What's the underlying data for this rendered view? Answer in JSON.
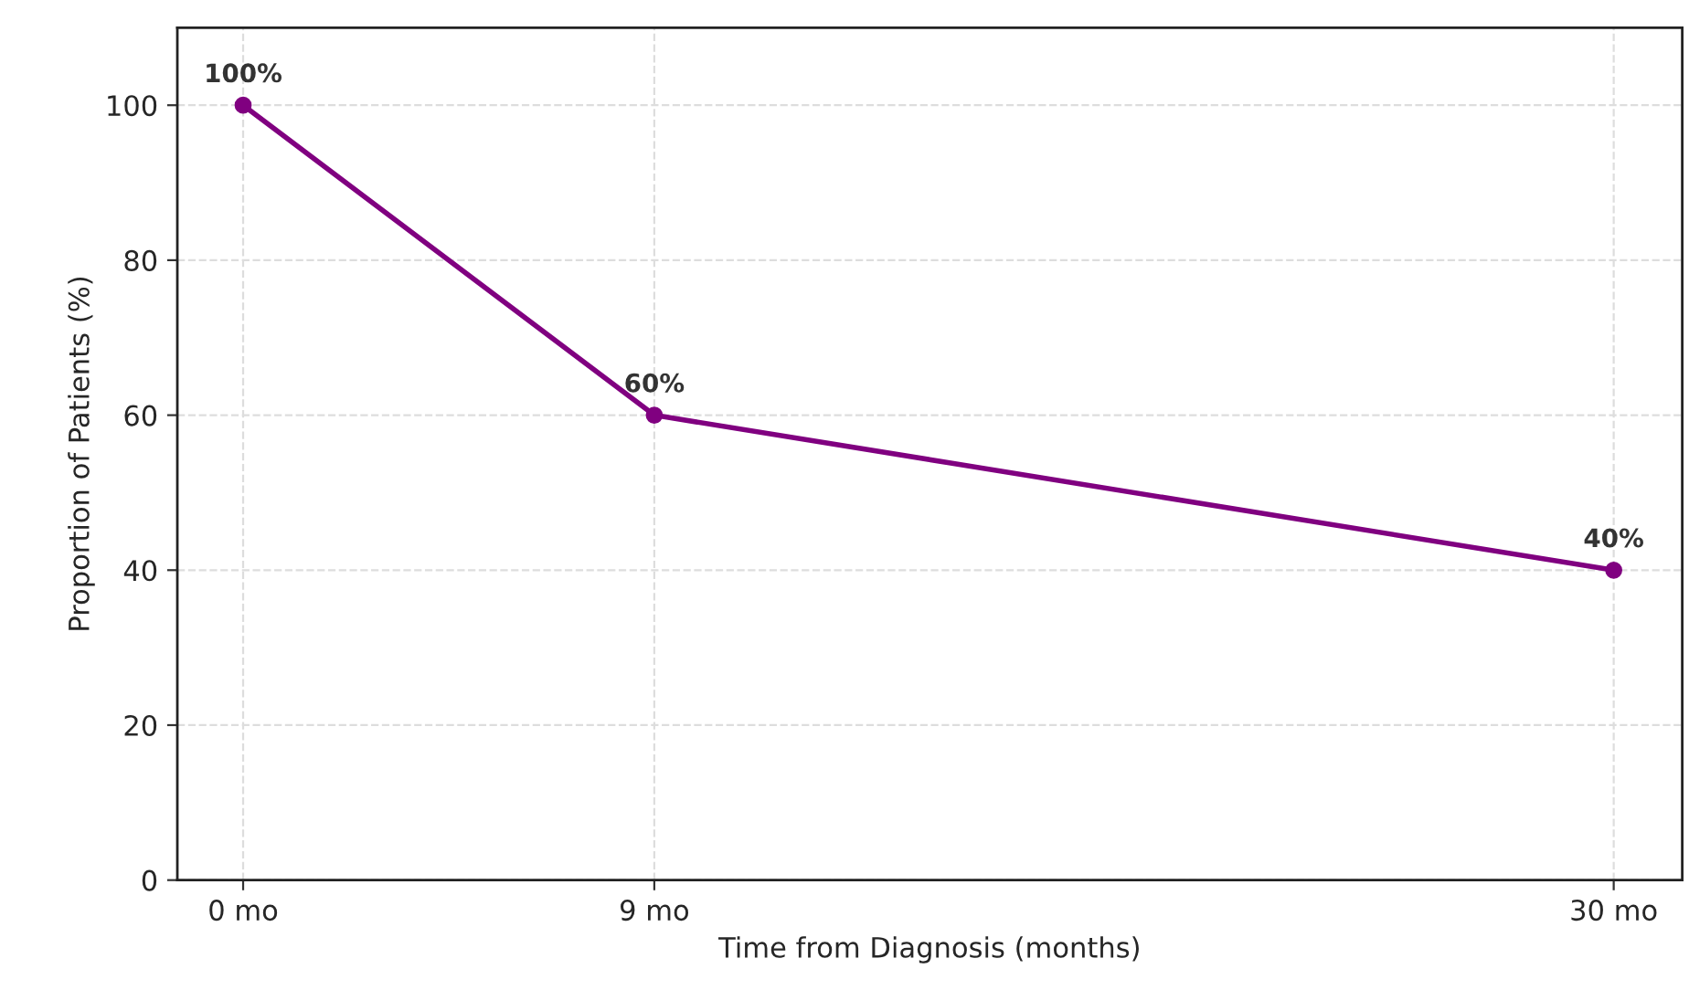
{
  "chart_data": {
    "type": "line",
    "xlabel": "Time from Diagnosis (months)",
    "ylabel": "Proportion of Patients (%)",
    "x": [
      0,
      9,
      30
    ],
    "series": [
      {
        "color": "#800080",
        "values": [
          100,
          60,
          40
        ],
        "value_labels": [
          "100%",
          "60%",
          "40%"
        ]
      }
    ],
    "xlim": [
      -1.44,
      31.5
    ],
    "xticks": [
      {
        "value": 0,
        "label": "0 mo"
      },
      {
        "value": 9,
        "label": "9 mo"
      },
      {
        "value": 30,
        "label": "30 mo"
      }
    ],
    "ylim": [
      0,
      110
    ],
    "yticks": [
      0,
      20,
      40,
      60,
      80,
      100
    ],
    "grid": true,
    "marker": "circle",
    "line_style": "solid"
  }
}
